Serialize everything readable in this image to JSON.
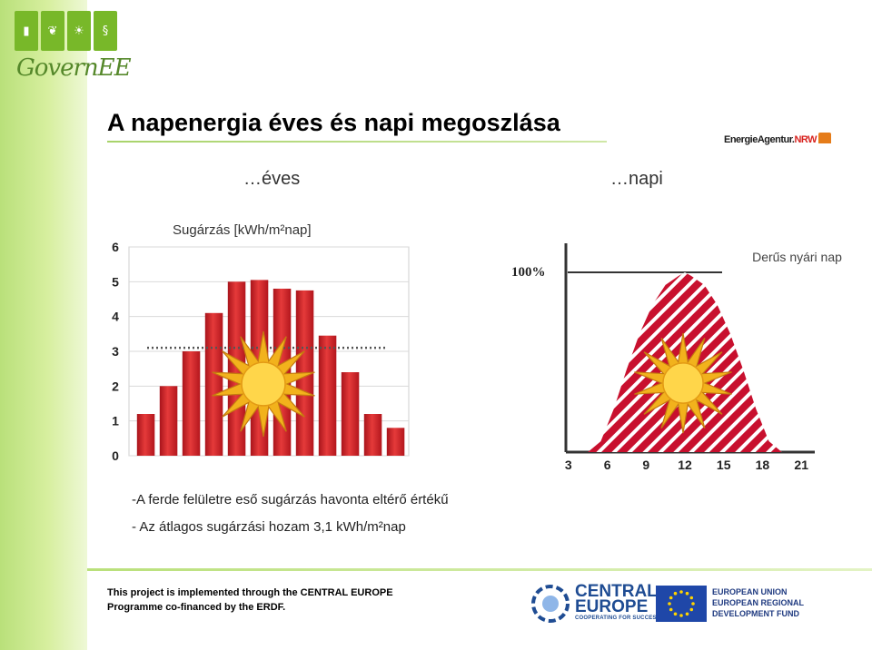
{
  "branding": {
    "logo_text": "GovernEE",
    "agency_logo_prefix": "EnergieAgentur.",
    "agency_logo_suffix": "NRW"
  },
  "slide": {
    "title": "A napenergia éves és napi megoszlása",
    "subhead_left": "…éves",
    "subhead_right": "…napi",
    "notes": [
      "-A ferde felületre  eső sugárzás havonta eltérő értékű",
      "- Az átlagos sugárzási hozam 3,1 kWh/m²nap"
    ]
  },
  "chart_data": [
    {
      "type": "bar",
      "ylabel": "Sugárzás [kWh/m²nap]",
      "ylim": [
        0,
        6
      ],
      "yticks": [
        "0",
        "1",
        "2",
        "3",
        "4",
        "5",
        "6"
      ],
      "values": [
        1.2,
        2.0,
        3.0,
        4.1,
        5.0,
        5.05,
        4.8,
        4.75,
        3.45,
        2.4,
        1.2,
        0.8
      ],
      "average": 3.1,
      "grid": true,
      "colors": {
        "bar": "#d8232a",
        "average_line": "#555555",
        "sun": "#f2b21c"
      }
    },
    {
      "type": "area",
      "reference_label": "100%",
      "annotation": "Derűs nyári nap",
      "xticks": [
        "3",
        "6",
        "9",
        "12",
        "15",
        "18",
        "21"
      ],
      "xlim": [
        3,
        21
      ],
      "ylim": [
        0,
        100
      ],
      "points": [
        [
          4.5,
          0
        ],
        [
          5.5,
          6
        ],
        [
          6.5,
          24
        ],
        [
          7.5,
          46
        ],
        [
          8.5,
          66
        ],
        [
          9.5,
          82
        ],
        [
          10.5,
          93
        ],
        [
          11.5,
          98
        ],
        [
          12,
          100
        ],
        [
          12.5,
          98
        ],
        [
          13.5,
          93
        ],
        [
          14.5,
          82
        ],
        [
          15.5,
          66
        ],
        [
          16.5,
          46
        ],
        [
          17.5,
          24
        ],
        [
          18.5,
          6
        ],
        [
          19.5,
          0
        ]
      ],
      "colors": {
        "fill": "#c8102e",
        "hatch": "#ffffff",
        "sun": "#f2b21c"
      }
    }
  ],
  "footer": {
    "text_line1": "This project is implemented through the CENTRAL EUROPE",
    "text_line2": "Programme co-financed by the ERDF.",
    "ce_line1": "CENTRAL",
    "ce_line2": "EUROPE",
    "ce_tagline": "COOPERATING FOR SUCCESS.",
    "eu_line1": "EUROPEAN UNION",
    "eu_line2": "EUROPEAN REGIONAL",
    "eu_line3": "DEVELOPMENT FUND"
  }
}
